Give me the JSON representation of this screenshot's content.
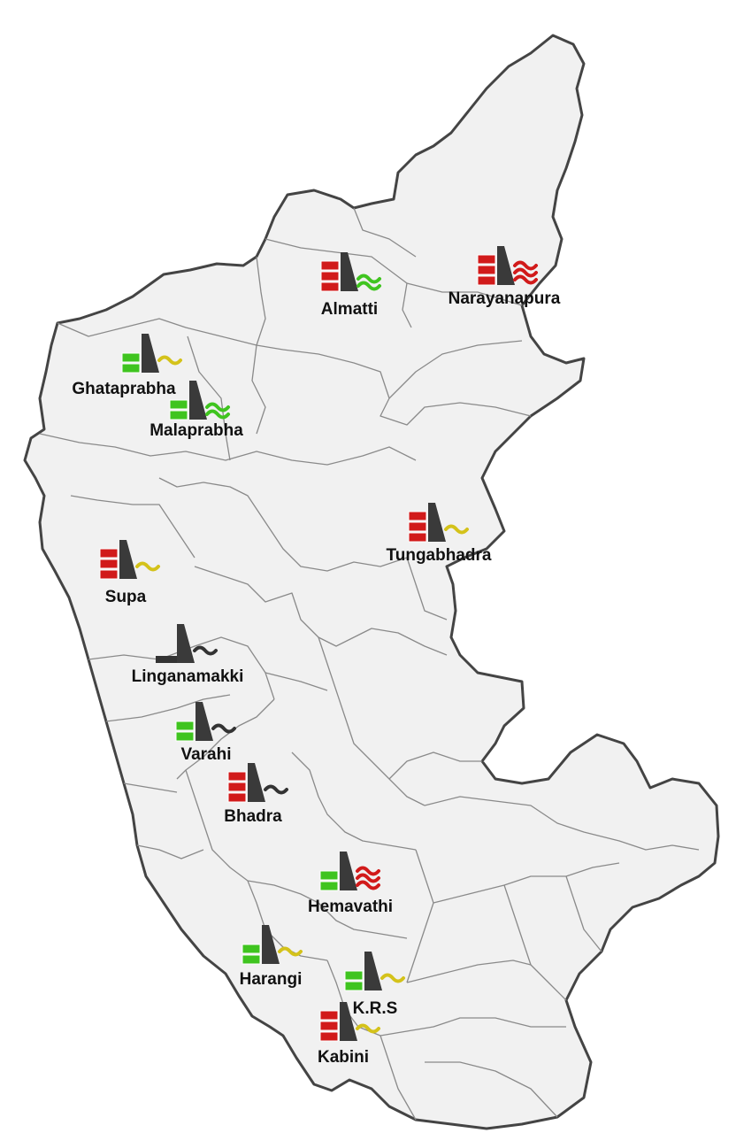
{
  "colors": {
    "land": "#f1f1f1",
    "border": "#8a8a8a",
    "outline": "#444444",
    "dam": "#3a3a3a",
    "green": "#3fc41f",
    "red": "#d11a1a",
    "yellow": "#d4c21a",
    "black": "#333333",
    "label": "#111111"
  },
  "legend_semantics": {
    "blocks": "storage level indicator",
    "wave_single": "low inflow",
    "wave_double": "moderate inflow",
    "wave_triple": "high inflow"
  },
  "dams": [
    {
      "id": "almatti",
      "name": "Almatti",
      "storage": "red",
      "blocks": 3,
      "waves": 2,
      "wave_color": "green"
    },
    {
      "id": "narayanapura",
      "name": "Narayanapura",
      "storage": "red",
      "blocks": 3,
      "waves": 3,
      "wave_color": "red"
    },
    {
      "id": "ghataprabha",
      "name": "Ghataprabha",
      "storage": "green",
      "blocks": 2,
      "waves": 1,
      "wave_color": "yellow"
    },
    {
      "id": "malaprabha",
      "name": "Malaprabha",
      "storage": "green",
      "blocks": 2,
      "waves": 2,
      "wave_color": "green"
    },
    {
      "id": "tungabhadra",
      "name": "Tungabhadra",
      "storage": "red",
      "blocks": 3,
      "waves": 1,
      "wave_color": "yellow"
    },
    {
      "id": "supa",
      "name": "Supa",
      "storage": "red",
      "blocks": 3,
      "waves": 1,
      "wave_color": "yellow"
    },
    {
      "id": "linganamakki",
      "name": "Linganamakki",
      "storage": "black",
      "blocks": 1,
      "waves": 1,
      "wave_color": "black"
    },
    {
      "id": "varahi",
      "name": "Varahi",
      "storage": "green",
      "blocks": 2,
      "waves": 1,
      "wave_color": "black"
    },
    {
      "id": "bhadra",
      "name": "Bhadra",
      "storage": "red",
      "blocks": 3,
      "waves": 1,
      "wave_color": "black"
    },
    {
      "id": "hemavathi",
      "name": "Hemavathi",
      "storage": "green",
      "blocks": 2,
      "waves": 3,
      "wave_color": "red"
    },
    {
      "id": "harangi",
      "name": "Harangi",
      "storage": "green",
      "blocks": 2,
      "waves": 1,
      "wave_color": "yellow"
    },
    {
      "id": "krs",
      "name": "K.R.S",
      "storage": "green",
      "blocks": 2,
      "waves": 1,
      "wave_color": "yellow"
    },
    {
      "id": "kabini",
      "name": "Kabini",
      "storage": "red",
      "blocks": 3,
      "waves": 1,
      "wave_color": "yellow"
    }
  ]
}
